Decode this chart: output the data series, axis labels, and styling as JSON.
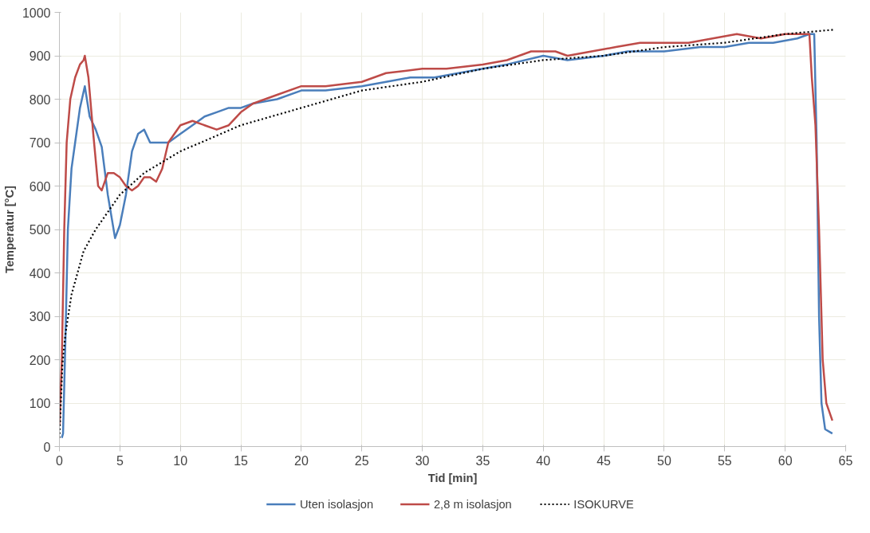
{
  "chart_data": {
    "type": "line",
    "xlabel": "Tid [min]",
    "ylabel": "Temperatur [°C]",
    "xlim": [
      0,
      65
    ],
    "xticks": [
      0,
      5,
      10,
      15,
      20,
      25,
      30,
      35,
      40,
      45,
      50,
      55,
      60,
      65
    ],
    "ylim": [
      0,
      1000
    ],
    "yticks": [
      0,
      100,
      200,
      300,
      400,
      500,
      600,
      700,
      800,
      900,
      1000
    ],
    "grid": true,
    "legend": "bottom",
    "series": [
      {
        "name": "Uten isolasjon",
        "color": "#4a7ebb",
        "line_style": "solid",
        "x": [
          0.2,
          0.3,
          0.5,
          0.7,
          1,
          1.3,
          1.7,
          2.1,
          2.5,
          3,
          3.5,
          4,
          4.6,
          5,
          5.5,
          6,
          6.5,
          7,
          7.5,
          8,
          9,
          10,
          11,
          12,
          13,
          14,
          15,
          16,
          18,
          20,
          22,
          25,
          27,
          29,
          31,
          33,
          35,
          37,
          40,
          42,
          45,
          47,
          50,
          53,
          55,
          57,
          59,
          61,
          62,
          62.4,
          62.6,
          62.8,
          63,
          63.3,
          63.9
        ],
        "values": [
          20,
          30,
          250,
          500,
          640,
          700,
          780,
          830,
          760,
          730,
          690,
          580,
          480,
          510,
          580,
          680,
          720,
          730,
          700,
          700,
          700,
          720,
          740,
          760,
          770,
          780,
          780,
          790,
          800,
          820,
          820,
          830,
          840,
          850,
          850,
          860,
          870,
          880,
          900,
          890,
          900,
          910,
          910,
          920,
          920,
          930,
          930,
          940,
          950,
          950,
          700,
          300,
          100,
          40,
          30
        ]
      },
      {
        "name": "2,8 m isolasjon",
        "color": "#be4b48",
        "line_style": "solid",
        "x": [
          0,
          0.2,
          0.4,
          0.6,
          0.9,
          1.3,
          1.7,
          2.0,
          2.1,
          2.4,
          2.8,
          3.2,
          3.5,
          4,
          4.5,
          5,
          5.5,
          6,
          6.5,
          7,
          7.5,
          8,
          8.5,
          9,
          10,
          11,
          12,
          13,
          14,
          15,
          16,
          18,
          20,
          22,
          25,
          27,
          30,
          32,
          35,
          37,
          39,
          41,
          42,
          44,
          46,
          48,
          50,
          52,
          54,
          56,
          58,
          60,
          62,
          62.2,
          62.5,
          62.8,
          63.1,
          63.4,
          63.9
        ],
        "values": [
          50,
          200,
          500,
          700,
          800,
          850,
          880,
          890,
          900,
          850,
          720,
          600,
          590,
          630,
          630,
          620,
          600,
          590,
          600,
          620,
          620,
          610,
          640,
          700,
          740,
          750,
          740,
          730,
          740,
          770,
          790,
          810,
          830,
          830,
          840,
          860,
          870,
          870,
          880,
          890,
          910,
          910,
          900,
          910,
          920,
          930,
          930,
          930,
          940,
          950,
          940,
          950,
          950,
          850,
          740,
          500,
          200,
          100,
          60
        ]
      },
      {
        "name": "ISOKURVE",
        "color": "#000000",
        "line_style": "dotted",
        "x": [
          0,
          0.25,
          0.5,
          1,
          1.5,
          2,
          3,
          4,
          5,
          7,
          10,
          15,
          20,
          25,
          30,
          35,
          40,
          45,
          50,
          55,
          60,
          64
        ],
        "values": [
          20,
          190,
          260,
          350,
          400,
          450,
          500,
          540,
          580,
          630,
          680,
          740,
          780,
          820,
          840,
          870,
          890,
          900,
          920,
          930,
          950,
          960
        ]
      }
    ]
  }
}
